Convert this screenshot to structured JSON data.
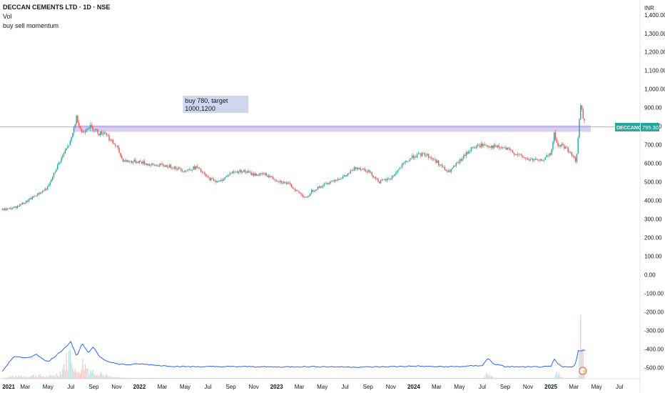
{
  "header": {
    "title": "DECCAN CEMENTS LTD · 1D · NSE",
    "indicator_1": "Vol",
    "indicator_2": "buy sell momentum"
  },
  "currency": "INR",
  "colors": {
    "up": "#26a69a",
    "down": "#ef5350",
    "zone": "#c8b8f0",
    "note_bg": "#c7d0ea",
    "price_line": "#26a69a",
    "momentum": "#2962ff",
    "price_tag_bg": "#26a69a"
  },
  "chart_data": {
    "type": "line",
    "subtype": "candlestick",
    "y_ticks": [
      "1,400.00",
      "1,300.00",
      "1,200.00",
      "1,100.00",
      "1,000.00",
      "900.00",
      "800.00",
      "700.00",
      "600.00",
      "500.00",
      "400.00",
      "300.00",
      "200.00",
      "100.00",
      "0.00",
      "-100.00",
      "-200.00",
      "-300.00",
      "-400.00",
      "-500.00"
    ],
    "y_tick_values": [
      1400,
      1300,
      1200,
      1100,
      1000,
      900,
      800,
      700,
      600,
      500,
      400,
      300,
      200,
      100,
      0,
      -100,
      -200,
      -300,
      -400,
      -500
    ],
    "ylim": [
      -560,
      1480
    ],
    "x_ticks": [
      "2021",
      "Mar",
      "May",
      "Jul",
      "Sep",
      "Nov",
      "2022",
      "Mar",
      "May",
      "Jul",
      "Sep",
      "Nov",
      "2023",
      "Mar",
      "May",
      "Jul",
      "Sep",
      "Nov",
      "2024",
      "Mar",
      "May",
      "Jul",
      "Sep",
      "Nov",
      "2025",
      "Mar",
      "May",
      "Jul"
    ],
    "x_tick_months": [
      0,
      2,
      4,
      6,
      8,
      10,
      12,
      14,
      16,
      18,
      20,
      22,
      24,
      26,
      28,
      30,
      32,
      34,
      36,
      38,
      40,
      42,
      44,
      46,
      48,
      50,
      52,
      54
    ],
    "xlim_months": [
      -0.2,
      55.8
    ],
    "price_path": {
      "months": [
        0,
        1,
        2,
        3,
        4,
        5,
        6,
        6.5,
        7,
        7.5,
        8,
        8.5,
        9,
        9.5,
        10,
        10.5,
        11,
        12,
        13,
        14,
        15,
        16,
        17,
        18,
        19,
        20,
        21,
        22,
        23,
        24,
        25,
        26,
        26.7,
        27,
        28,
        29,
        30,
        31,
        32,
        33,
        34,
        35,
        36,
        37,
        38,
        39,
        40,
        41,
        42,
        43,
        44,
        45,
        46,
        46.5,
        47,
        47.5,
        48,
        48.3,
        48.6,
        49,
        49.5,
        50,
        50.2,
        50.4,
        50.6,
        51
      ],
      "values": [
        350,
        360,
        390,
        430,
        470,
        610,
        720,
        850,
        760,
        800,
        790,
        760,
        770,
        720,
        690,
        620,
        610,
        610,
        590,
        590,
        580,
        560,
        580,
        520,
        500,
        550,
        560,
        540,
        540,
        510,
        490,
        440,
        410,
        450,
        480,
        510,
        530,
        580,
        560,
        500,
        520,
        590,
        640,
        650,
        610,
        550,
        610,
        680,
        700,
        690,
        680,
        650,
        620,
        620,
        610,
        630,
        650,
        760,
        690,
        700,
        670,
        630,
        600,
        760,
        910,
        800
      ]
    },
    "volume_path": {
      "months": [
        0,
        1,
        2,
        3,
        4,
        5,
        6,
        6.5,
        7,
        7.5,
        8,
        8.5,
        9,
        9.5,
        10,
        10.5,
        11,
        12,
        14,
        16,
        18,
        20,
        22,
        24,
        26,
        28,
        30,
        32,
        34,
        36,
        38,
        40,
        42,
        42.5,
        43,
        44,
        46,
        48,
        48.3,
        48.6,
        49,
        49.5,
        50,
        50.2,
        50.4,
        50.6,
        51
      ],
      "values": [
        10,
        25,
        30,
        40,
        20,
        60,
        300,
        50,
        180,
        120,
        80,
        70,
        40,
        20,
        15,
        10,
        10,
        8,
        8,
        6,
        5,
        5,
        5,
        5,
        5,
        4,
        4,
        4,
        5,
        4,
        5,
        5,
        6,
        60,
        8,
        4,
        4,
        4,
        6,
        80,
        10,
        5,
        4,
        6,
        20,
        480,
        10
      ]
    },
    "momentum_path": {
      "months": [
        0,
        1,
        2,
        3,
        4,
        5,
        6,
        6.5,
        7,
        7.5,
        8,
        8.5,
        9,
        9.5,
        10,
        11,
        12,
        14,
        16,
        18,
        20,
        22,
        24,
        26,
        28,
        30,
        32,
        34,
        36,
        38,
        40,
        42,
        42.5,
        43,
        44,
        46,
        48,
        48.3,
        48.6,
        49,
        49.5,
        50,
        50.2,
        50.4,
        50.6,
        51
      ],
      "values": [
        -520,
        -440,
        -450,
        -430,
        -470,
        -420,
        -360,
        -440,
        -370,
        -420,
        -390,
        -440,
        -460,
        -470,
        -480,
        -485,
        -480,
        -490,
        -495,
        -495,
        -495,
        -495,
        -497,
        -495,
        -495,
        -497,
        -497,
        -495,
        -492,
        -495,
        -495,
        -488,
        -450,
        -480,
        -495,
        -497,
        -495,
        -455,
        -480,
        -497,
        -495,
        -495,
        -470,
        -410,
        -412,
        -405
      ]
    },
    "horizontal_line": 797,
    "zone": {
      "low": 770,
      "high": 805
    },
    "last_price": {
      "symbol": "DECCANCE",
      "value": "795.30"
    },
    "annotation": "buy 780, target 1000,1200"
  }
}
